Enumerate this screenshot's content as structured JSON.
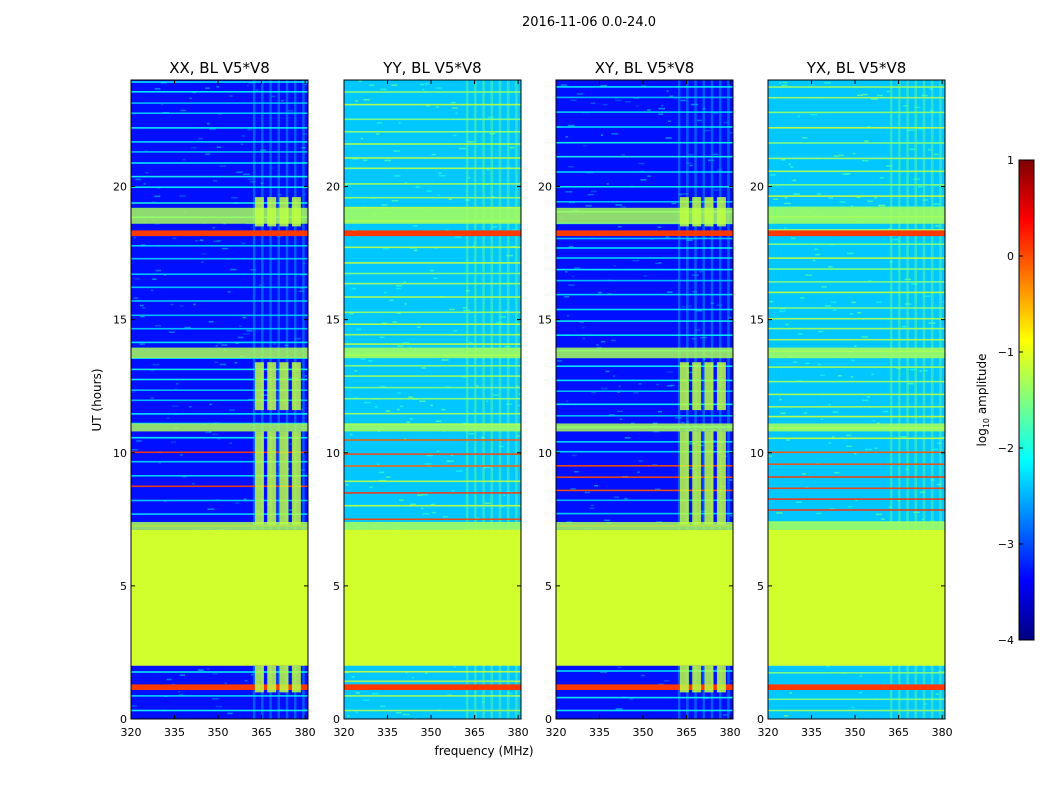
{
  "figure": {
    "suptitle": "2016-11-06 0.0-24.0"
  },
  "chart_data": {
    "type": "heatmap",
    "xlabel": "frequency (MHz)",
    "ylabel": "UT (hours)",
    "xlim": [
      320,
      381
    ],
    "ylim": [
      0,
      24
    ],
    "xticks": [
      320,
      335,
      350,
      365,
      380
    ],
    "yticks": [
      0,
      5,
      10,
      15,
      20
    ],
    "colorbar": {
      "label_prefix": "log",
      "label_sub": "10",
      "label_suffix": " amplitude",
      "range": [
        -4,
        1
      ],
      "ticks": [
        1,
        0,
        -1,
        -2,
        -3,
        -4
      ],
      "tick_labels": [
        "1",
        "0",
        "−1",
        "−2",
        "−3",
        "−4"
      ]
    },
    "panels": [
      {
        "title": "XX, BL V5*V8",
        "background": "blue"
      },
      {
        "title": "YY, BL V5*V8",
        "background": "cyan"
      },
      {
        "title": "XY, BL V5*V8",
        "background": "blue"
      },
      {
        "title": "YX, BL V5*V8",
        "background": "cyan"
      }
    ],
    "flagged_blocks": [
      {
        "t_start": 2.0,
        "t_end": 7.1,
        "log_amplitude": -1.1
      }
    ],
    "rfi_band_mhz": [
      362,
      379
    ],
    "bright_rows_hours": [
      18.25,
      18.35,
      1.2,
      1.3
    ]
  }
}
